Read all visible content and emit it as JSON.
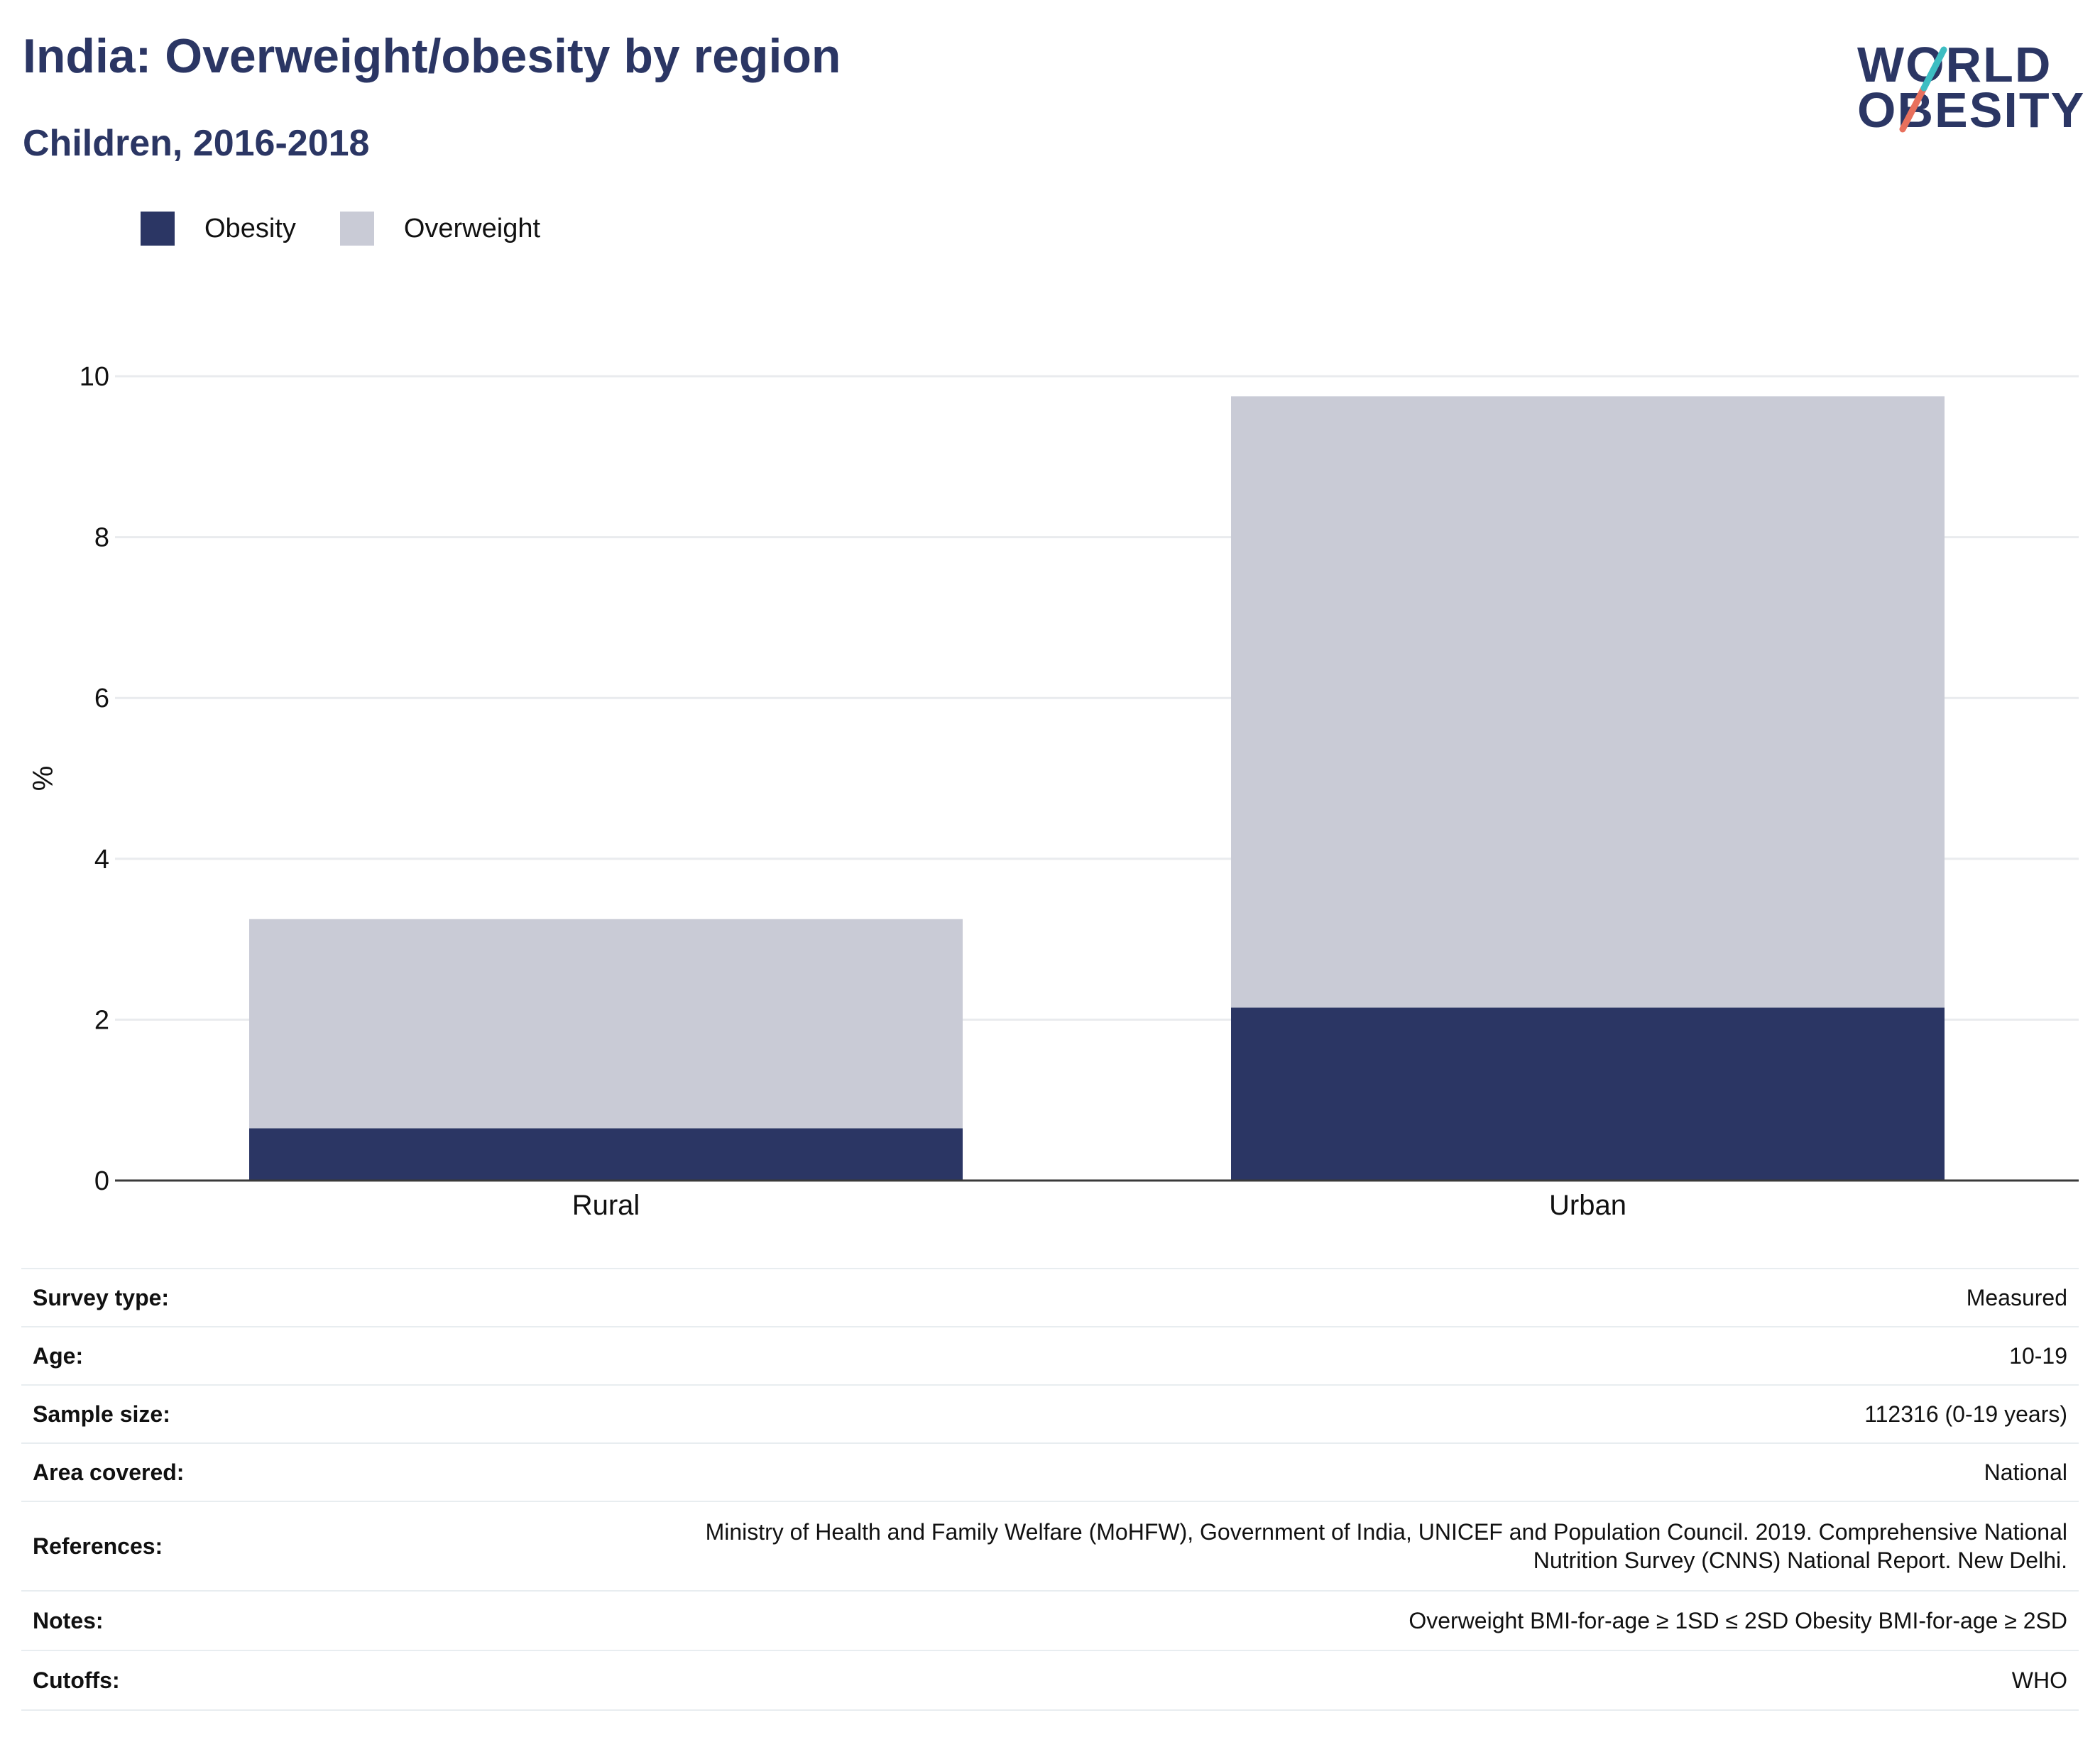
{
  "title": "India: Overweight/obesity by region",
  "subtitle": "Children, 2016-2018",
  "logo": {
    "line1": "WORLD",
    "line2": "OBESITY",
    "accent_colors": [
      "#3dbdc2",
      "#e8705d"
    ]
  },
  "legend": [
    {
      "label": "Obesity",
      "color": "#2b3664"
    },
    {
      "label": "Overweight",
      "color": "#c9cbd6"
    }
  ],
  "chart_data": {
    "type": "bar",
    "stacked": true,
    "categories": [
      "Rural",
      "Urban"
    ],
    "series": [
      {
        "name": "Obesity",
        "values": [
          0.65,
          2.15
        ],
        "color": "#2b3664"
      },
      {
        "name": "Overweight",
        "values": [
          2.6,
          7.6
        ],
        "color": "#c9cbd6"
      }
    ],
    "ylabel": "%",
    "xlabel": "",
    "ylim": [
      0,
      10
    ],
    "yticks": [
      0,
      2,
      4,
      6,
      8,
      10
    ],
    "grid": true,
    "legend_position": "top-left"
  },
  "info": [
    {
      "label": "Survey type:",
      "value": "Measured"
    },
    {
      "label": "Age:",
      "value": "10-19"
    },
    {
      "label": "Sample size:",
      "value": "112316 (0-19 years)"
    },
    {
      "label": "Area covered:",
      "value": "National"
    },
    {
      "label": "References:",
      "value_lines": [
        "Ministry of Health and Family Welfare (MoHFW), Government of India, UNICEF and Population Council. 2019. Comprehensive National",
        "Nutrition Survey (CNNS) National Report. New Delhi."
      ]
    },
    {
      "label": "Notes:",
      "value": "Overweight BMI-for-age ≥ 1SD ≤ 2SD Obesity BMI-for-age ≥ 2SD"
    },
    {
      "label": "Cutoffs:",
      "value": "WHO"
    }
  ]
}
